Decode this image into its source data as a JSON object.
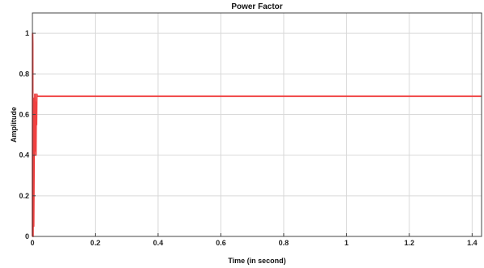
{
  "chart_data": {
    "type": "line",
    "title": "Power Factor",
    "xlabel": "Time (in second)",
    "ylabel": "Amplitude",
    "xlim": [
      0,
      1.43
    ],
    "ylim": [
      0,
      1.1
    ],
    "x_ticks": [
      0,
      0.2,
      0.4,
      0.6,
      0.8,
      1,
      1.2,
      1.4
    ],
    "x_tick_labels": [
      "0",
      "0.2",
      "0.4",
      "0.6",
      "0.8",
      "1",
      "1.2",
      "1.4"
    ],
    "y_ticks": [
      0,
      0.2,
      0.4,
      0.6,
      0.8,
      1
    ],
    "y_tick_labels": [
      "0",
      "0.2",
      "0.4",
      "0.6",
      "0.8",
      "1"
    ],
    "grid": true,
    "line_color": "#f04040",
    "series": [
      {
        "x": [
          0,
          0.0005,
          0.001,
          0.0015,
          0.002,
          0.003,
          0.004,
          0.005,
          0.006,
          0.007,
          0.008,
          0.009,
          0.01,
          0.011,
          0.012,
          0.013,
          0.014,
          0.015,
          0.018,
          0.03,
          0.1,
          0.5,
          1.0,
          1.43
        ],
        "y": [
          0,
          1.0,
          0.95,
          0.02,
          0.0,
          0.45,
          0.05,
          0.3,
          0.68,
          0.42,
          0.7,
          0.55,
          0.66,
          0.4,
          0.62,
          0.55,
          0.7,
          0.69,
          0.69,
          0.69,
          0.69,
          0.69,
          0.69,
          0.69
        ]
      }
    ]
  }
}
